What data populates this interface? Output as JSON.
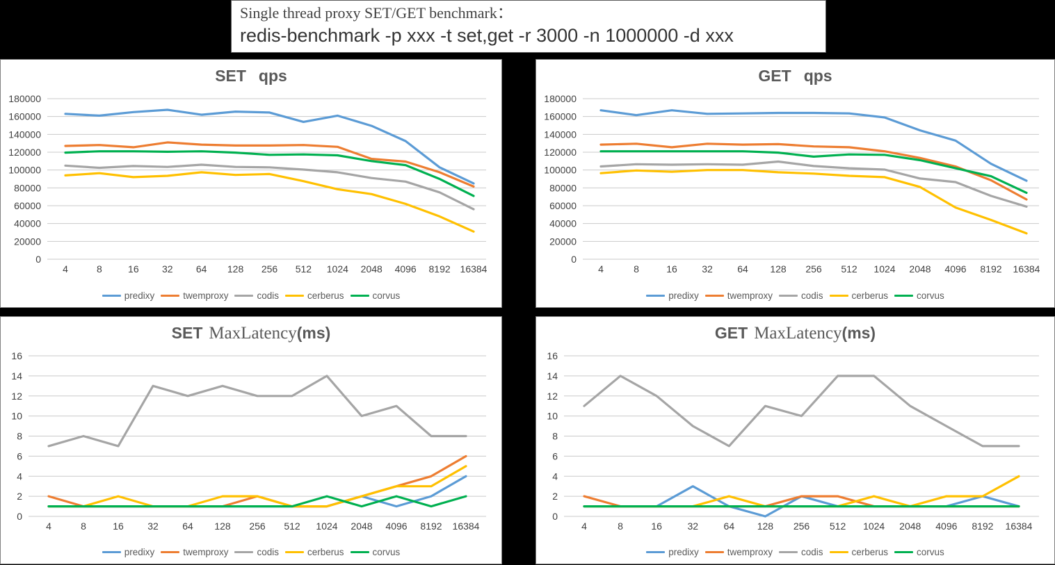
{
  "header": {
    "line1": "Single thread proxy SET/GET benchmark：",
    "line2": "redis-benchmark -p xxx -t set,get -r 3000 -n 1000000 -d xxx"
  },
  "colors": {
    "predixy": "#5B9BD5",
    "twemproxy": "#ED7D31",
    "codis": "#A5A5A5",
    "cerberus": "#FFC000",
    "corvus": "#00B050",
    "axis_text": "#404040",
    "gridline": "#C9C9C9",
    "title_text": "#595959",
    "panel_bg": "#FFFFFF",
    "page_bg": "#000000"
  },
  "legend_labels": [
    "predixy",
    "twemproxy",
    "codis",
    "cerberus",
    "corvus"
  ],
  "chart_data": [
    {
      "id": "set-qps",
      "type": "line",
      "title_parts": [
        {
          "text": "SET",
          "font": "sans",
          "gap": 0
        },
        {
          "text": "qps",
          "font": "sans",
          "gap": 18
        }
      ],
      "categories": [
        "4",
        "8",
        "16",
        "32",
        "64",
        "128",
        "256",
        "512",
        "1024",
        "2048",
        "4096",
        "8192",
        "16384"
      ],
      "ylim": [
        0,
        180000
      ],
      "ystep": 20000,
      "grid": true,
      "legend_position": "bottom",
      "series": [
        {
          "name": "predixy",
          "values": [
            163000,
            161000,
            165000,
            167500,
            162000,
            165500,
            164500,
            154000,
            161000,
            149500,
            132500,
            103000,
            85000
          ]
        },
        {
          "name": "twemproxy",
          "values": [
            127000,
            128000,
            125500,
            131000,
            128500,
            127500,
            127500,
            128000,
            126000,
            112500,
            109500,
            97500,
            81500
          ]
        },
        {
          "name": "codis",
          "values": [
            105000,
            102500,
            104500,
            103500,
            106000,
            103500,
            103000,
            100500,
            97500,
            91000,
            87000,
            75000,
            56000
          ]
        },
        {
          "name": "cerberus",
          "values": [
            94000,
            96500,
            92000,
            93500,
            97500,
            94500,
            95500,
            87500,
            78500,
            73000,
            62000,
            48000,
            31000
          ]
        },
        {
          "name": "corvus",
          "values": [
            119500,
            121000,
            121000,
            120500,
            121000,
            119500,
            117000,
            117500,
            116500,
            110000,
            105500,
            90000,
            71000
          ]
        }
      ]
    },
    {
      "id": "get-qps",
      "type": "line",
      "title_parts": [
        {
          "text": "GET",
          "font": "sans",
          "gap": 0
        },
        {
          "text": "qps",
          "font": "sans",
          "gap": 18
        }
      ],
      "categories": [
        "4",
        "8",
        "16",
        "32",
        "64",
        "128",
        "256",
        "512",
        "1024",
        "2048",
        "4096",
        "8192",
        "16384"
      ],
      "ylim": [
        0,
        180000
      ],
      "ystep": 20000,
      "grid": true,
      "legend_position": "bottom",
      "series": [
        {
          "name": "predixy",
          "values": [
            167000,
            161500,
            167000,
            163000,
            163500,
            164000,
            164000,
            163500,
            159000,
            144500,
            133000,
            107000,
            88000
          ]
        },
        {
          "name": "twemproxy",
          "values": [
            128500,
            129500,
            125500,
            129500,
            128500,
            129000,
            126500,
            125500,
            121000,
            113500,
            104000,
            88500,
            67000
          ]
        },
        {
          "name": "codis",
          "values": [
            104000,
            106500,
            106000,
            106500,
            106000,
            109500,
            104500,
            102000,
            100500,
            90500,
            86500,
            71000,
            59000
          ]
        },
        {
          "name": "cerberus",
          "values": [
            96500,
            99500,
            98000,
            100000,
            100000,
            97500,
            96000,
            93500,
            92000,
            81000,
            58000,
            44000,
            29000
          ]
        },
        {
          "name": "corvus",
          "values": [
            121000,
            121000,
            121000,
            121000,
            121000,
            119500,
            115000,
            117500,
            117000,
            111000,
            102000,
            93000,
            74500
          ]
        }
      ]
    },
    {
      "id": "set-maxlatency",
      "type": "line",
      "title_parts": [
        {
          "text": "SET",
          "font": "sans",
          "gap": 0
        },
        {
          "text": "MaxLatency",
          "font": "serif",
          "gap": 9
        },
        {
          "text": "(ms)",
          "font": "sans",
          "gap": 0
        }
      ],
      "categories": [
        "4",
        "8",
        "16",
        "32",
        "64",
        "128",
        "256",
        "512",
        "1024",
        "2048",
        "4096",
        "8192",
        "16384"
      ],
      "ylim": [
        0,
        16
      ],
      "ystep": 2,
      "grid": true,
      "legend_position": "bottom",
      "series": [
        {
          "name": "predixy",
          "values": [
            1,
            1,
            1,
            1,
            1,
            1,
            1,
            1,
            1,
            2,
            1,
            2,
            4
          ]
        },
        {
          "name": "twemproxy",
          "values": [
            2,
            1,
            1,
            1,
            1,
            1,
            2,
            1,
            1,
            2,
            3,
            4,
            6
          ]
        },
        {
          "name": "codis",
          "values": [
            7,
            8,
            7,
            13,
            12,
            13,
            12,
            12,
            14,
            10,
            11,
            8,
            8
          ]
        },
        {
          "name": "cerberus",
          "values": [
            1,
            1,
            2,
            1,
            1,
            2,
            2,
            1,
            1,
            2,
            3,
            3,
            5
          ]
        },
        {
          "name": "corvus",
          "values": [
            1,
            1,
            1,
            1,
            1,
            1,
            1,
            1,
            2,
            1,
            2,
            1,
            2
          ]
        }
      ]
    },
    {
      "id": "get-maxlatency",
      "type": "line",
      "title_parts": [
        {
          "text": "GET",
          "font": "sans",
          "gap": 0
        },
        {
          "text": "MaxLatency",
          "font": "serif",
          "gap": 9
        },
        {
          "text": "(ms)",
          "font": "sans",
          "gap": 0
        }
      ],
      "categories": [
        "4",
        "8",
        "16",
        "32",
        "64",
        "128",
        "256",
        "512",
        "1024",
        "2048",
        "4096",
        "8192",
        "16384"
      ],
      "ylim": [
        0,
        16
      ],
      "ystep": 2,
      "grid": true,
      "legend_position": "bottom",
      "series": [
        {
          "name": "predixy",
          "values": [
            1,
            1,
            1,
            3,
            1,
            0,
            2,
            1,
            1,
            1,
            1,
            2,
            1
          ]
        },
        {
          "name": "twemproxy",
          "values": [
            2,
            1,
            1,
            1,
            1,
            1,
            2,
            2,
            1,
            1,
            1,
            1,
            1
          ]
        },
        {
          "name": "codis",
          "values": [
            11,
            14,
            12,
            9,
            7,
            11,
            10,
            14,
            14,
            11,
            9,
            7,
            7
          ]
        },
        {
          "name": "cerberus",
          "values": [
            1,
            1,
            1,
            1,
            2,
            1,
            1,
            1,
            2,
            1,
            2,
            2,
            4
          ]
        },
        {
          "name": "corvus",
          "values": [
            1,
            1,
            1,
            1,
            1,
            1,
            1,
            1,
            1,
            1,
            1,
            1,
            1
          ]
        }
      ]
    }
  ]
}
